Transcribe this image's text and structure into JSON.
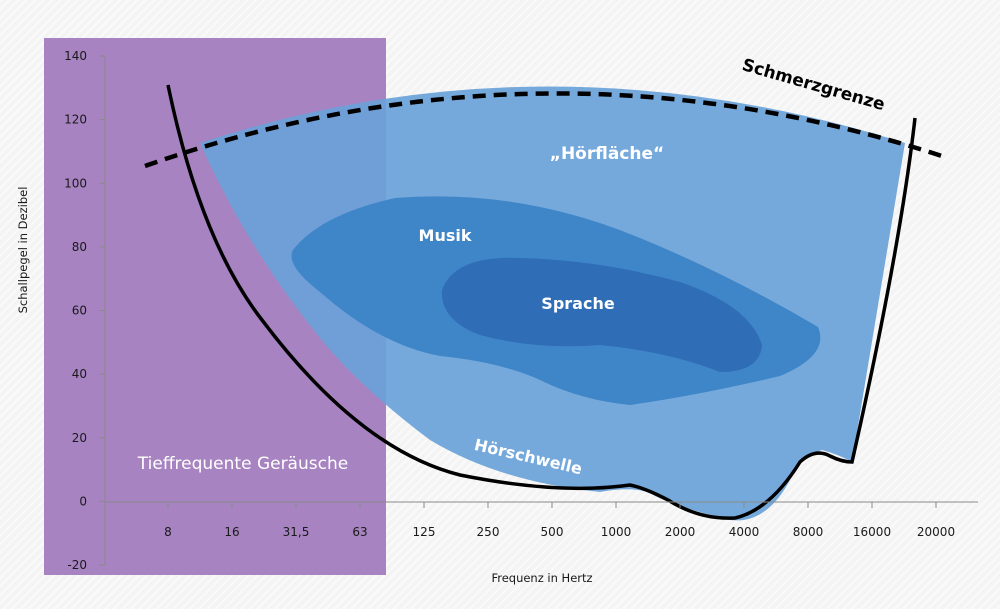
{
  "chart_data": {
    "type": "area",
    "xlabel": "Frequenz in Hertz",
    "ylabel": "Schallpegel in Dezibel",
    "x_ticks": [
      "8",
      "16",
      "31,5",
      "63",
      "125",
      "250",
      "500",
      "1000",
      "2000",
      "4000",
      "8000",
      "16000",
      "20000"
    ],
    "y_ticks": [
      "140",
      "120",
      "100",
      "80",
      "60",
      "40",
      "20",
      "0",
      "-20"
    ],
    "ylim": [
      -20,
      140
    ],
    "regions": {
      "hoerflaeche": "„Hörfläche“",
      "musik": "Musik",
      "sprache": "Sprache",
      "tieffrequent": "Tieffrequente Geräusche"
    },
    "curves": {
      "schmerzgrenze": "Schmerzgrenze",
      "hoerschwelle": "Hörschwelle"
    },
    "colors": {
      "hoerflaeche": "#6aa2d8",
      "musik": "#3f86c8",
      "sprache": "#2f6db7",
      "tieffrequent": "#a783c1",
      "curve": "#000000"
    }
  }
}
